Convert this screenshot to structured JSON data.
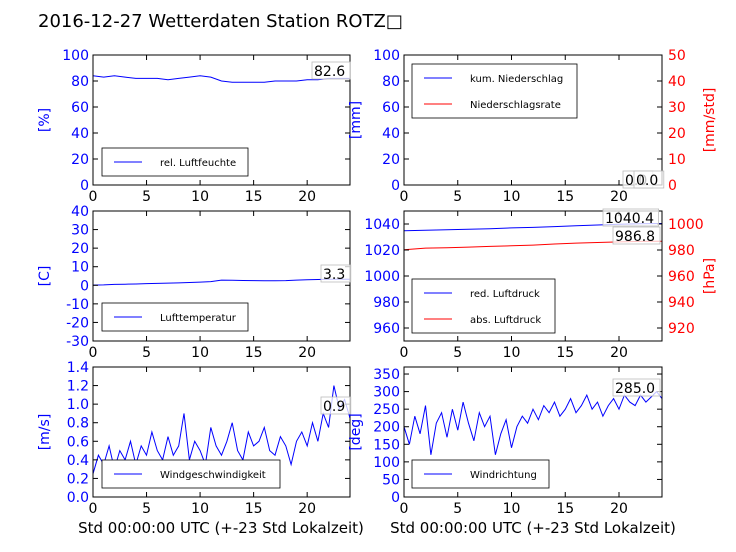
{
  "figure": {
    "title": "2016-12-27 Wetterdaten Station ROTZ□",
    "xlabel": "Std 00:00:00 UTC (+-23 Std Lokalzeit)"
  },
  "colors": {
    "primary": "#0000ff",
    "secondary": "#ff0000",
    "axis": "#000000"
  },
  "chart_data": [
    {
      "id": "humidity",
      "type": "line",
      "ylabel": "[%]",
      "xlim": [
        0,
        24
      ],
      "ylim": [
        0,
        100
      ],
      "x_ticks": [
        0,
        5,
        10,
        15,
        20
      ],
      "y_ticks": [
        0,
        20,
        40,
        60,
        80,
        100
      ],
      "legend": "lower-left",
      "series": [
        {
          "name": "rel. Luftfeuchte",
          "color": "#0000ff",
          "x": [
            0,
            1,
            2,
            3,
            4,
            5,
            6,
            7,
            8,
            9,
            10,
            11,
            12,
            13,
            14,
            15,
            16,
            17,
            18,
            19,
            20,
            21,
            22,
            23,
            24
          ],
          "y": [
            84,
            83,
            84,
            83,
            82,
            82,
            82,
            81,
            82,
            83,
            84,
            83,
            80,
            79,
            79,
            79,
            79,
            80,
            80,
            80,
            81,
            81,
            82,
            82,
            82
          ]
        }
      ],
      "value_labels": [
        "82.6"
      ]
    },
    {
      "id": "precipitation",
      "type": "line",
      "ylabel": "[mm]",
      "ylabel_right": "[mm/std]",
      "xlim": [
        0,
        24
      ],
      "ylim": [
        0,
        100
      ],
      "ylim_right": [
        0,
        50
      ],
      "x_ticks": [
        0,
        5,
        10,
        15,
        20
      ],
      "y_ticks": [
        0,
        20,
        40,
        60,
        80,
        100
      ],
      "y_ticks_right": [
        0,
        10,
        20,
        30,
        40,
        50
      ],
      "legend": "upper-left",
      "series": [
        {
          "name": "kum. Niederschlag",
          "color": "#0000ff",
          "axis": "left",
          "x": [
            0,
            24
          ],
          "y": [
            0,
            0
          ]
        },
        {
          "name": "Niederschlagsrate",
          "color": "#ff0000",
          "axis": "right",
          "x": [
            0,
            24
          ],
          "y": [
            0,
            0
          ]
        }
      ],
      "value_labels": [
        "0.0",
        "0.0"
      ]
    },
    {
      "id": "temperature",
      "type": "line",
      "ylabel": "[C]",
      "xlim": [
        0,
        24
      ],
      "ylim": [
        -30,
        40
      ],
      "x_ticks": [
        0,
        5,
        10,
        15,
        20
      ],
      "y_ticks": [
        -30,
        -20,
        -10,
        0,
        10,
        20,
        30,
        40
      ],
      "legend": "lower-left",
      "series": [
        {
          "name": "Lufttemperatur",
          "color": "#0000ff",
          "x": [
            0,
            1,
            2,
            3,
            4,
            5,
            6,
            7,
            8,
            9,
            10,
            11,
            12,
            13,
            14,
            15,
            16,
            17,
            18,
            19,
            20,
            21,
            22,
            23,
            24
          ],
          "y": [
            0.1,
            0.2,
            0.5,
            0.6,
            0.7,
            0.9,
            1.0,
            1.2,
            1.3,
            1.5,
            1.7,
            2.0,
            2.8,
            2.7,
            2.6,
            2.5,
            2.4,
            2.4,
            2.5,
            2.8,
            3.0,
            3.1,
            3.2,
            3.3,
            3.3
          ]
        }
      ],
      "value_labels": [
        "3.3"
      ]
    },
    {
      "id": "pressure",
      "type": "line",
      "ylabel_right": "[hPa]",
      "xlim": [
        0,
        24
      ],
      "ylim": [
        950,
        1050
      ],
      "ylim_right": [
        910,
        1010
      ],
      "x_ticks": [
        0,
        5,
        10,
        15,
        20
      ],
      "y_ticks": [
        960,
        980,
        1000,
        1020,
        1040
      ],
      "y_ticks_right": [
        920,
        940,
        960,
        980,
        1000
      ],
      "legend": "lower-left",
      "series": [
        {
          "name": "red. Luftdruck",
          "color": "#0000ff",
          "axis": "left",
          "x": [
            0,
            2,
            4,
            6,
            8,
            10,
            12,
            14,
            16,
            18,
            20,
            22,
            24
          ],
          "y": [
            1034.8,
            1035.2,
            1035.6,
            1036.0,
            1036.4,
            1037.0,
            1037.4,
            1038.0,
            1038.6,
            1039.2,
            1039.8,
            1040.2,
            1040.4
          ]
        },
        {
          "name": "abs. Luftdruck",
          "color": "#ff0000",
          "axis": "right",
          "x": [
            0,
            2,
            4,
            6,
            8,
            10,
            12,
            14,
            16,
            18,
            20,
            22,
            24
          ],
          "y": [
            980.2,
            981.5,
            981.8,
            982.2,
            982.8,
            983.2,
            983.8,
            984.6,
            985.3,
            985.8,
            986.2,
            986.6,
            986.8
          ]
        }
      ],
      "value_labels": [
        "1040.4",
        "986.8"
      ]
    },
    {
      "id": "windspeed",
      "type": "line",
      "ylabel": "[m/s]",
      "xlim": [
        0,
        24
      ],
      "ylim": [
        0,
        1.4
      ],
      "x_ticks": [
        0,
        5,
        10,
        15,
        20
      ],
      "y_ticks": [
        0.0,
        0.2,
        0.4,
        0.6,
        0.8,
        1.0,
        1.2,
        1.4
      ],
      "legend": "lower-left",
      "series": [
        {
          "name": "Windgeschwindigkeit",
          "color": "#0000ff",
          "x": [
            0,
            0.5,
            1,
            1.5,
            2,
            2.5,
            3,
            3.5,
            4,
            4.5,
            5,
            5.5,
            6,
            6.5,
            7,
            7.5,
            8,
            8.5,
            9,
            9.5,
            10,
            10.5,
            11,
            11.5,
            12,
            12.5,
            13,
            13.5,
            14,
            14.5,
            15,
            15.5,
            16,
            16.5,
            17,
            17.5,
            18,
            18.5,
            19,
            19.5,
            20,
            20.5,
            21,
            21.5,
            22,
            22.5,
            23,
            23.5,
            24
          ],
          "y": [
            0.25,
            0.45,
            0.35,
            0.55,
            0.3,
            0.5,
            0.4,
            0.6,
            0.35,
            0.55,
            0.45,
            0.7,
            0.5,
            0.4,
            0.65,
            0.45,
            0.55,
            0.9,
            0.4,
            0.6,
            0.5,
            0.35,
            0.75,
            0.55,
            0.45,
            0.6,
            0.8,
            0.5,
            0.4,
            0.7,
            0.55,
            0.6,
            0.75,
            0.5,
            0.45,
            0.65,
            0.55,
            0.35,
            0.6,
            0.7,
            0.55,
            0.8,
            0.6,
            0.9,
            0.75,
            1.2,
            0.95,
            1.05,
            0.85
          ]
        }
      ],
      "value_labels": [
        "0.9"
      ]
    },
    {
      "id": "winddirection",
      "type": "line",
      "ylabel": "[deg]",
      "xlim": [
        0,
        24
      ],
      "ylim": [
        0,
        370
      ],
      "x_ticks": [
        0,
        5,
        10,
        15,
        20
      ],
      "y_ticks": [
        0,
        50,
        100,
        150,
        200,
        250,
        300,
        350
      ],
      "legend": "lower-left",
      "series": [
        {
          "name": "Windrichtung",
          "color": "#0000ff",
          "x": [
            0,
            0.5,
            1,
            1.5,
            2,
            2.5,
            3,
            3.5,
            4,
            4.5,
            5,
            5.5,
            6,
            6.5,
            7,
            7.5,
            8,
            8.5,
            9,
            9.5,
            10,
            10.5,
            11,
            11.5,
            12,
            12.5,
            13,
            13.5,
            14,
            14.5,
            15,
            15.5,
            16,
            16.5,
            17,
            17.5,
            18,
            18.5,
            19,
            19.5,
            20,
            20.5,
            21,
            21.5,
            22,
            22.5,
            23,
            23.5,
            24
          ],
          "y": [
            200,
            150,
            230,
            180,
            260,
            120,
            210,
            240,
            170,
            250,
            190,
            270,
            210,
            160,
            240,
            200,
            230,
            120,
            180,
            220,
            140,
            200,
            230,
            210,
            250,
            220,
            260,
            240,
            270,
            230,
            250,
            280,
            240,
            260,
            290,
            250,
            270,
            230,
            260,
            280,
            250,
            290,
            270,
            260,
            290,
            270,
            285,
            300,
            280
          ]
        }
      ],
      "value_labels": [
        "285.0"
      ]
    }
  ]
}
